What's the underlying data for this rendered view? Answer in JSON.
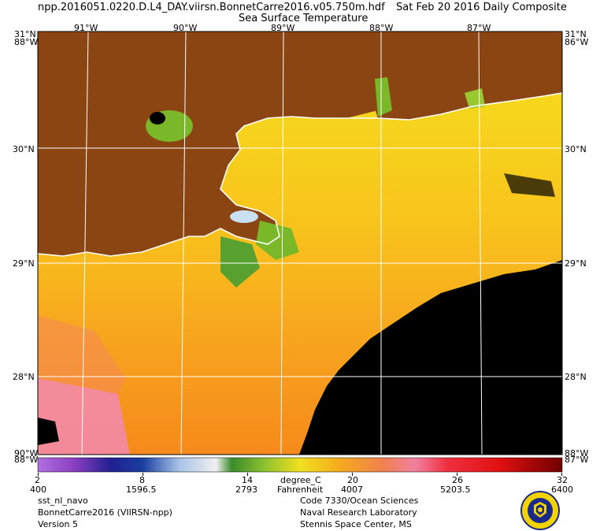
{
  "header": {
    "filename": "npp.2016051.0220.D.L4_DAY.viirsn.BonnetCarre2016.v05.750m.hdf",
    "date_composite": "Sat Feb 20 2016 Daily Composite",
    "product": "Sea Surface Temperature"
  },
  "map": {
    "top_lon_labels": [
      "91°W",
      "90°W",
      "89°W",
      "88°W",
      "87°W"
    ],
    "corner_top_left": "31°N",
    "corner_top_left_lon": "88°W",
    "corner_top_right": "31°N",
    "corner_top_right_lon": "86°W",
    "corner_bottom_left": "90°W",
    "corner_bottom_left_lat": "88°W",
    "corner_bottom_right": "88°W",
    "corner_bottom_right_lat": "87°W",
    "lat_labels_left": [
      "30°N",
      "29°N",
      "28°N"
    ],
    "lat_labels_right": [
      "30°N",
      "29°N",
      "28°N"
    ],
    "colors": {
      "land": "#8B4513",
      "nodata": "#000000",
      "coast": "#ffffff",
      "grid": "#ffffff"
    }
  },
  "colorbar": {
    "celsius_ticks": [
      "2",
      "8",
      "14",
      "20",
      "26",
      "32"
    ],
    "fahrenheit_ticks": [
      "400",
      "1596.5",
      "2793",
      "4007",
      "5203.5",
      "6400"
    ],
    "unit_c": "degree_C",
    "unit_f": "Fahrenheit"
  },
  "footer": {
    "left": [
      "sst_nl_navo",
      "BonnetCarre2016 (VIIRSN-npp)",
      "Version 5"
    ],
    "center": [
      "Code 7330/Ocean Sciences",
      "Naval Research Laboratory",
      "Stennis Space Center, MS"
    ]
  }
}
